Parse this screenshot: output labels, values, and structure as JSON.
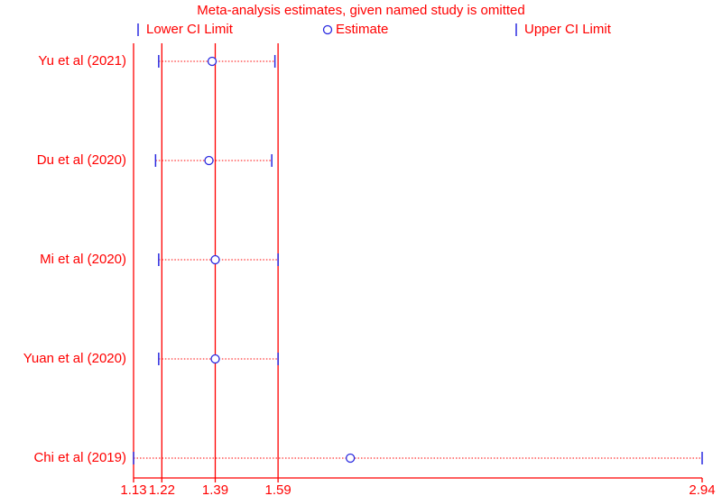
{
  "chart_data": {
    "type": "forest",
    "title": "Meta-analysis estimates, given named study is omitted",
    "categories": [
      "Yu et al (2021)",
      "Du et al (2020)",
      "Mi et al (2020)",
      "Yuan et al (2020)",
      "Chi et al (2019)"
    ],
    "series": [
      {
        "name": "Lower CI Limit",
        "color": "#2a2ae0",
        "values": [
          1.21,
          1.2,
          1.21,
          1.21,
          1.13
        ]
      },
      {
        "name": "Estimate",
        "color": "#2a2ae0",
        "values": [
          1.38,
          1.37,
          1.39,
          1.39,
          1.82
        ]
      },
      {
        "name": "Upper CI Limit",
        "color": "#2a2ae0",
        "values": [
          1.58,
          1.57,
          1.59,
          1.59,
          2.94
        ]
      }
    ],
    "reference_lines": [
      1.22,
      1.39,
      1.59
    ],
    "xlim": [
      1.13,
      2.94
    ],
    "xticks": [
      1.13,
      1.22,
      1.39,
      1.59,
      2.94
    ],
    "axis_color": "#ff0000"
  }
}
